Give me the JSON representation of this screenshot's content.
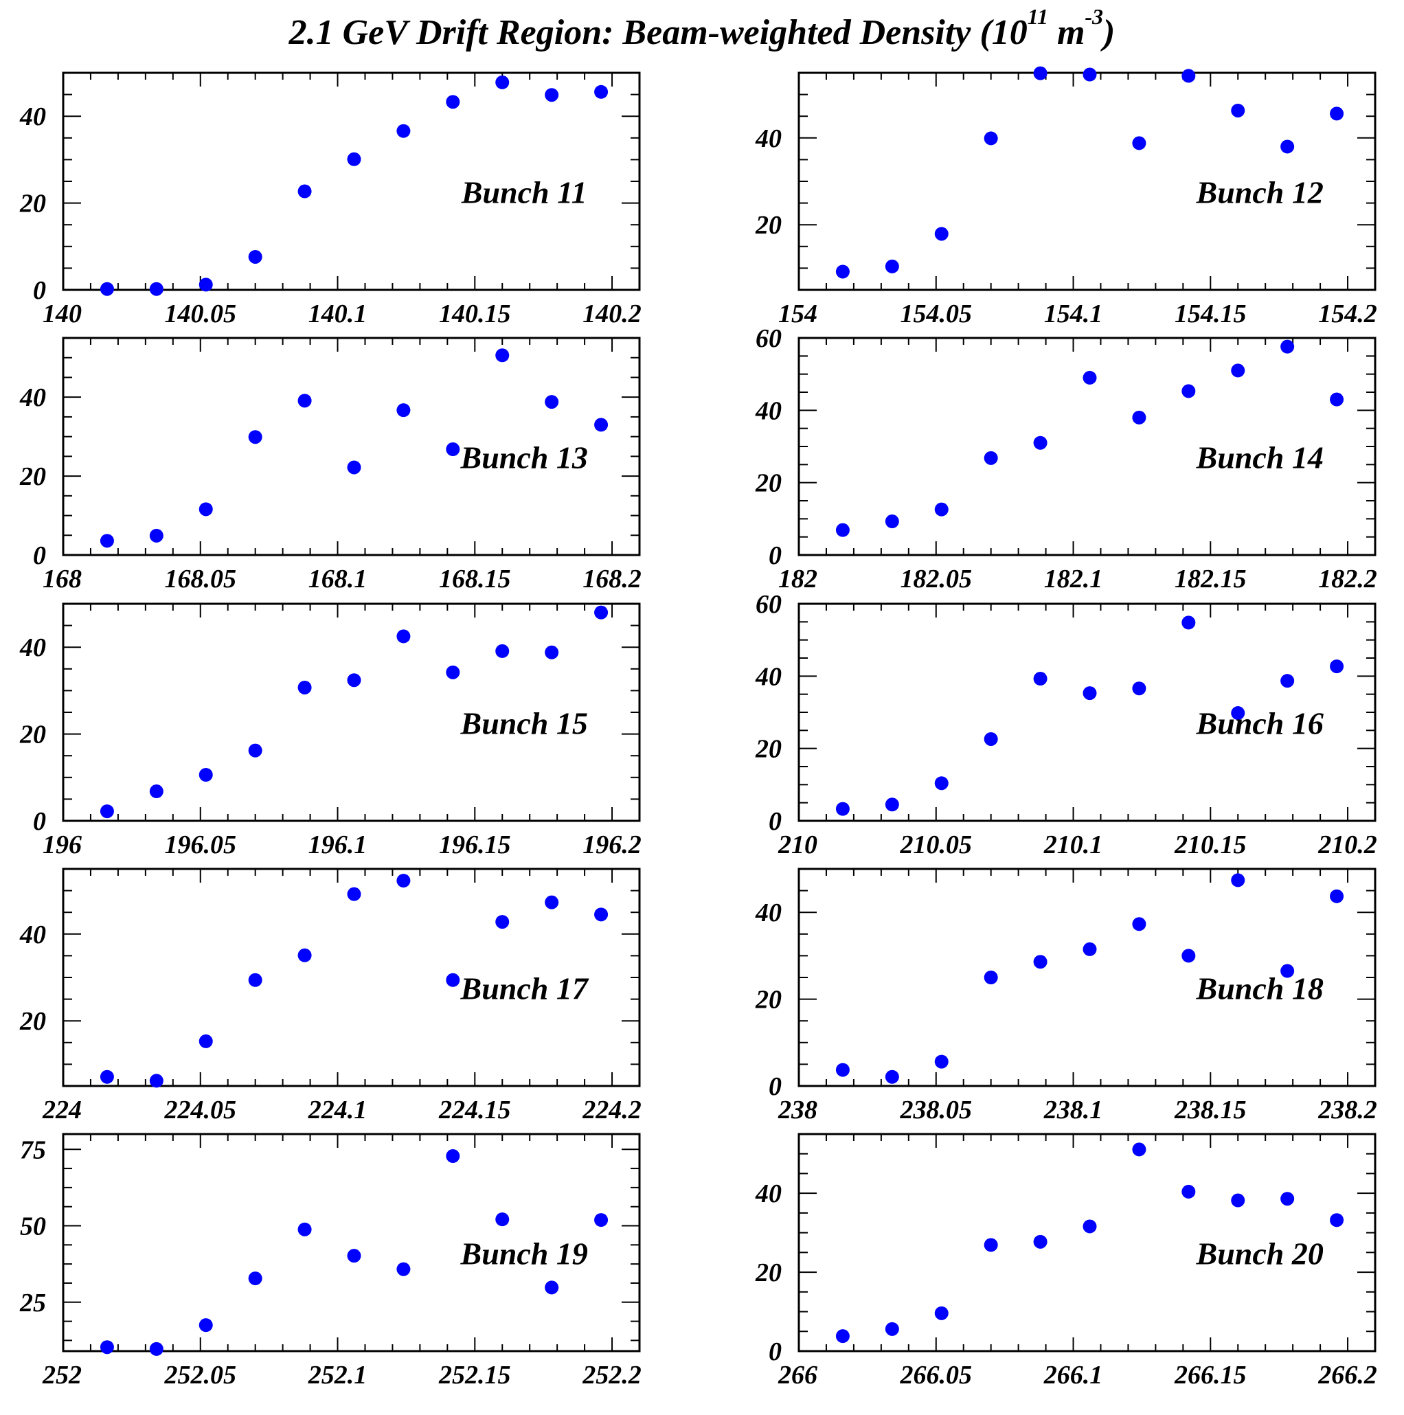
{
  "title": {
    "main": "2.1 GeV Drift Region: Beam-weighted Density  (10",
    "sup1": "11",
    "mid": " m",
    "sup2": "-3",
    "close": ")"
  },
  "colors": {
    "marker": "#0000ff",
    "axis": "#000000",
    "background": "#ffffff"
  },
  "chart_data": [
    {
      "type": "scatter",
      "annotation": "Bunch 11",
      "xlim": [
        140,
        140.21
      ],
      "ylim": [
        0,
        50
      ],
      "xticks": [
        140,
        140.05,
        140.1,
        140.15,
        140.2
      ],
      "xtick_labels": [
        "140",
        "140.05",
        "140.1",
        "140.15",
        "140.2"
      ],
      "yticks": [
        0,
        20,
        40
      ],
      "ytick_labels": [
        "0",
        "20",
        "40"
      ],
      "grid": false,
      "x": [
        140.016,
        140.034,
        140.052,
        140.07,
        140.088,
        140.106,
        140.124,
        140.142,
        140.16,
        140.178,
        140.196
      ],
      "y": [
        0.2,
        0.2,
        1.2,
        7.6,
        22.7,
        30.1,
        36.6,
        43.3,
        47.8,
        44.9,
        45.6
      ]
    },
    {
      "type": "scatter",
      "annotation": "Bunch 12",
      "xlim": [
        154,
        154.21
      ],
      "ylim": [
        5,
        55
      ],
      "xticks": [
        154,
        154.05,
        154.1,
        154.15,
        154.2
      ],
      "xtick_labels": [
        "154",
        "154.05",
        "154.1",
        "154.15",
        "154.2"
      ],
      "yticks": [
        20,
        40
      ],
      "ytick_labels": [
        "20",
        "40"
      ],
      "grid": false,
      "x": [
        154.016,
        154.034,
        154.052,
        154.07,
        154.088,
        154.106,
        154.124,
        154.142,
        154.16,
        154.178,
        154.196
      ],
      "y": [
        9.2,
        10.4,
        17.9,
        39.9,
        54.9,
        54.6,
        38.8,
        54.3,
        46.3,
        38.0,
        45.6
      ]
    },
    {
      "type": "scatter",
      "annotation": "Bunch 13",
      "xlim": [
        168,
        168.21
      ],
      "ylim": [
        0,
        55
      ],
      "xticks": [
        168,
        168.05,
        168.1,
        168.15,
        168.2
      ],
      "xtick_labels": [
        "168",
        "168.05",
        "168.1",
        "168.15",
        "168.2"
      ],
      "yticks": [
        0,
        20,
        40
      ],
      "ytick_labels": [
        "0",
        "20",
        "40"
      ],
      "grid": false,
      "x": [
        168.016,
        168.034,
        168.052,
        168.07,
        168.088,
        168.106,
        168.124,
        168.142,
        168.16,
        168.178,
        168.196
      ],
      "y": [
        3.6,
        4.9,
        11.6,
        29.9,
        39.1,
        22.2,
        36.7,
        26.8,
        50.6,
        38.8,
        33.0
      ]
    },
    {
      "type": "scatter",
      "annotation": "Bunch 14",
      "xlim": [
        182,
        182.21
      ],
      "ylim": [
        0,
        60
      ],
      "xticks": [
        182,
        182.05,
        182.1,
        182.15,
        182.2
      ],
      "xtick_labels": [
        "182",
        "182.05",
        "182.1",
        "182.15",
        "182.2"
      ],
      "yticks": [
        0,
        20,
        40,
        60
      ],
      "ytick_labels": [
        "0",
        "20",
        "40",
        "60"
      ],
      "grid": false,
      "x": [
        182.016,
        182.034,
        182.052,
        182.07,
        182.088,
        182.106,
        182.124,
        182.142,
        182.16,
        182.178,
        182.196
      ],
      "y": [
        6.9,
        9.3,
        12.6,
        26.8,
        31.0,
        49.0,
        38.0,
        45.3,
        51.0,
        57.6,
        43.0
      ]
    },
    {
      "type": "scatter",
      "annotation": "Bunch 15",
      "xlim": [
        196,
        196.21
      ],
      "ylim": [
        0,
        50
      ],
      "xticks": [
        196,
        196.05,
        196.1,
        196.15,
        196.2
      ],
      "xtick_labels": [
        "196",
        "196.05",
        "196.1",
        "196.15",
        "196.2"
      ],
      "yticks": [
        0,
        20,
        40
      ],
      "ytick_labels": [
        "0",
        "20",
        "40"
      ],
      "grid": false,
      "x": [
        196.016,
        196.034,
        196.052,
        196.07,
        196.088,
        196.106,
        196.124,
        196.142,
        196.16,
        196.178,
        196.196
      ],
      "y": [
        2.2,
        6.8,
        10.6,
        16.2,
        30.7,
        32.4,
        42.5,
        34.2,
        39.1,
        38.8,
        48.0
      ]
    },
    {
      "type": "scatter",
      "annotation": "Bunch 16",
      "xlim": [
        210,
        210.21
      ],
      "ylim": [
        0,
        60
      ],
      "xticks": [
        210,
        210.05,
        210.1,
        210.15,
        210.2
      ],
      "xtick_labels": [
        "210",
        "210.05",
        "210.1",
        "210.15",
        "210.2"
      ],
      "yticks": [
        0,
        20,
        40,
        60
      ],
      "ytick_labels": [
        "0",
        "20",
        "40",
        "60"
      ],
      "grid": false,
      "x": [
        210.016,
        210.034,
        210.052,
        210.07,
        210.088,
        210.106,
        210.124,
        210.142,
        210.16,
        210.178,
        210.196
      ],
      "y": [
        3.3,
        4.5,
        10.4,
        22.6,
        39.3,
        35.3,
        36.6,
        54.8,
        29.8,
        38.7,
        42.7
      ]
    },
    {
      "type": "scatter",
      "annotation": "Bunch 17",
      "xlim": [
        224,
        224.21
      ],
      "ylim": [
        5,
        55
      ],
      "xticks": [
        224,
        224.05,
        224.1,
        224.15,
        224.2
      ],
      "xtick_labels": [
        "224",
        "224.05",
        "224.1",
        "224.15",
        "224.2"
      ],
      "yticks": [
        20,
        40
      ],
      "ytick_labels": [
        "20",
        "40"
      ],
      "grid": false,
      "x": [
        224.016,
        224.034,
        224.052,
        224.07,
        224.088,
        224.106,
        224.124,
        224.142,
        224.16,
        224.178,
        224.196
      ],
      "y": [
        7.1,
        6.2,
        15.3,
        29.4,
        35.1,
        49.2,
        52.3,
        29.4,
        42.8,
        47.3,
        44.5
      ]
    },
    {
      "type": "scatter",
      "annotation": "Bunch 18",
      "xlim": [
        238,
        238.21
      ],
      "ylim": [
        0,
        50
      ],
      "xticks": [
        238,
        238.05,
        238.1,
        238.15,
        238.2
      ],
      "xtick_labels": [
        "238",
        "238.05",
        "238.1",
        "238.15",
        "238.2"
      ],
      "yticks": [
        0,
        20,
        40
      ],
      "ytick_labels": [
        "0",
        "20",
        "40"
      ],
      "grid": false,
      "x": [
        238.016,
        238.034,
        238.052,
        238.07,
        238.088,
        238.106,
        238.124,
        238.142,
        238.16,
        238.178,
        238.196
      ],
      "y": [
        3.7,
        2.1,
        5.6,
        25.0,
        28.6,
        31.5,
        37.3,
        30.0,
        47.4,
        26.5,
        43.7
      ]
    },
    {
      "type": "scatter",
      "annotation": "Bunch 19",
      "xlim": [
        252,
        252.21
      ],
      "ylim": [
        9,
        80
      ],
      "xticks": [
        252,
        252.05,
        252.1,
        252.15,
        252.2
      ],
      "xtick_labels": [
        "252",
        "252.05",
        "252.1",
        "252.15",
        "252.2"
      ],
      "yticks": [
        25,
        50,
        75
      ],
      "ytick_labels": [
        "25",
        "50",
        "75"
      ],
      "grid": false,
      "x": [
        252.016,
        252.034,
        252.052,
        252.07,
        252.088,
        252.106,
        252.124,
        252.142,
        252.16,
        252.178,
        252.196
      ],
      "y": [
        10.3,
        9.7,
        17.5,
        32.8,
        48.8,
        40.2,
        35.8,
        72.8,
        52.1,
        29.8,
        51.9
      ]
    },
    {
      "type": "scatter",
      "annotation": "Bunch 20",
      "xlim": [
        266,
        266.21
      ],
      "ylim": [
        0,
        55
      ],
      "xticks": [
        266,
        266.05,
        266.1,
        266.15,
        266.2
      ],
      "xtick_labels": [
        "266",
        "266.05",
        "266.1",
        "266.15",
        "266.2"
      ],
      "yticks": [
        0,
        20,
        40
      ],
      "ytick_labels": [
        "0",
        "20",
        "40"
      ],
      "grid": false,
      "x": [
        266.016,
        266.034,
        266.052,
        266.07,
        266.088,
        266.106,
        266.124,
        266.142,
        266.16,
        266.178,
        266.196
      ],
      "y": [
        3.8,
        5.6,
        9.6,
        26.9,
        27.7,
        31.6,
        51.1,
        40.4,
        38.2,
        38.6,
        33.2
      ]
    }
  ]
}
